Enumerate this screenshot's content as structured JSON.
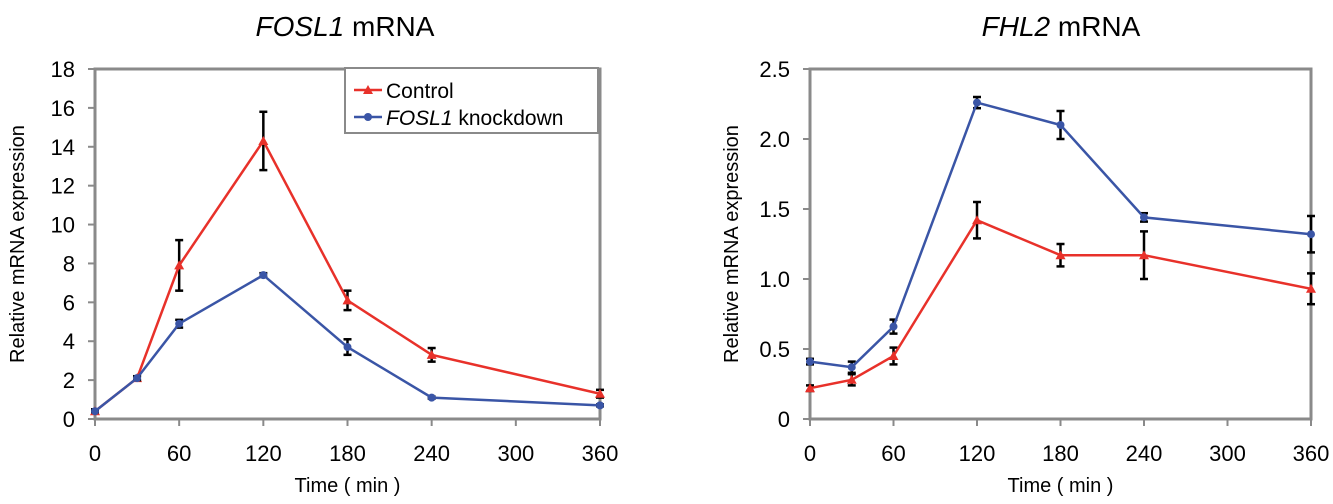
{
  "chart_data": [
    {
      "type": "line",
      "title_gene": "FOSL1",
      "title_suffix": " mRNA",
      "xlabel": "Time ( min )",
      "ylabel": "Relative mRNA expression",
      "xlim": [
        0,
        360
      ],
      "ylim": [
        0,
        18
      ],
      "xticks": [
        0,
        60,
        120,
        180,
        240,
        300,
        360
      ],
      "yticks": [
        0,
        2,
        4,
        6,
        8,
        10,
        12,
        14,
        16,
        18
      ],
      "ytick_labels": [
        "0",
        "2",
        "4",
        "6",
        "8",
        "10",
        "12",
        "14",
        "16",
        "18"
      ],
      "grid": false,
      "legend": "top-right",
      "series": [
        {
          "name": "Control",
          "color": "#e8312a",
          "marker": "triangle",
          "x": [
            0,
            30,
            60,
            120,
            180,
            240,
            360
          ],
          "y": [
            0.4,
            2.1,
            7.9,
            14.3,
            6.1,
            3.3,
            1.3
          ],
          "err": [
            0.1,
            0.1,
            1.3,
            1.5,
            0.5,
            0.35,
            0.2
          ]
        },
        {
          "name_italic": "FOSL1",
          "name_rest": " knockdown",
          "color": "#3a55a6",
          "marker": "circle",
          "x": [
            0,
            30,
            60,
            120,
            180,
            240,
            360
          ],
          "y": [
            0.4,
            2.1,
            4.9,
            7.4,
            3.7,
            1.1,
            0.7
          ],
          "err": [
            0.05,
            0.1,
            0.2,
            0.1,
            0.4,
            0.05,
            0.05
          ]
        }
      ]
    },
    {
      "type": "line",
      "title_gene": "FHL2",
      "title_suffix": " mRNA",
      "xlabel": "Time ( min )",
      "ylabel": "Relative mRNA expression",
      "xlim": [
        0,
        360
      ],
      "ylim": [
        0,
        2.5
      ],
      "xticks": [
        0,
        60,
        120,
        180,
        240,
        300,
        360
      ],
      "yticks": [
        0,
        0.5,
        1.0,
        1.5,
        2.0,
        2.5
      ],
      "ytick_labels": [
        "0",
        "0.5",
        "1.0",
        "1.5",
        "2.0",
        "2.5"
      ],
      "grid": false,
      "series": [
        {
          "color": "#e8312a",
          "marker": "triangle",
          "x": [
            0,
            30,
            60,
            120,
            180,
            240,
            360
          ],
          "y": [
            0.22,
            0.28,
            0.45,
            1.42,
            1.17,
            1.17,
            0.93
          ],
          "err": [
            0.02,
            0.04,
            0.06,
            0.13,
            0.08,
            0.17,
            0.11
          ]
        },
        {
          "color": "#3a55a6",
          "marker": "circle",
          "x": [
            0,
            30,
            60,
            120,
            180,
            240,
            360
          ],
          "y": [
            0.41,
            0.37,
            0.66,
            2.26,
            2.1,
            1.44,
            1.32
          ],
          "err": [
            0.02,
            0.04,
            0.05,
            0.04,
            0.1,
            0.03,
            0.13
          ]
        }
      ]
    }
  ]
}
